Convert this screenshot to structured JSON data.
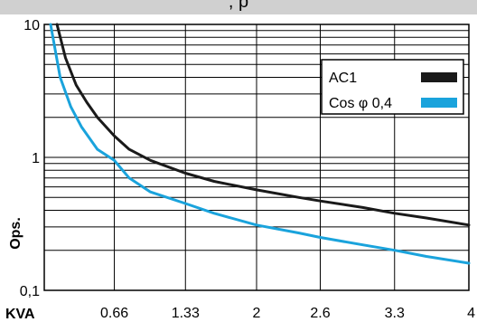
{
  "header_strip_text": ", p",
  "chart_data": {
    "type": "line",
    "xlabel": "KVA",
    "ylabel": "Ops.",
    "x_tick_labels": [
      "0.66",
      "1.33",
      "2",
      "2.6",
      "3.3",
      "4"
    ],
    "y_tick_labels": [
      "0,1",
      "1",
      "10"
    ],
    "xlim": [
      0,
      4
    ],
    "ylim": [
      0.1,
      10
    ],
    "y_scale": "log",
    "grid": true,
    "legend_position": "top-right",
    "series": [
      {
        "name": "AC1",
        "color": "#1a1a1a",
        "x": [
          0.12,
          0.2,
          0.3,
          0.4,
          0.5,
          0.66,
          0.8,
          1.0,
          1.33,
          1.6,
          2.0,
          2.4,
          2.6,
          3.0,
          3.3,
          3.6,
          4.0
        ],
        "y": [
          10,
          5.6,
          3.5,
          2.6,
          2.0,
          1.45,
          1.15,
          0.95,
          0.76,
          0.66,
          0.57,
          0.5,
          0.47,
          0.42,
          0.38,
          0.35,
          0.31
        ]
      },
      {
        "name": "Cos φ 0,4",
        "color": "#1aa3dc",
        "x": [
          0.06,
          0.15,
          0.25,
          0.35,
          0.5,
          0.66,
          0.8,
          1.0,
          1.33,
          1.6,
          2.0,
          2.4,
          2.6,
          3.0,
          3.3,
          3.6,
          4.0
        ],
        "y": [
          10,
          4.0,
          2.4,
          1.7,
          1.15,
          0.95,
          0.7,
          0.55,
          0.45,
          0.38,
          0.31,
          0.27,
          0.25,
          0.22,
          0.2,
          0.18,
          0.16
        ]
      }
    ]
  }
}
